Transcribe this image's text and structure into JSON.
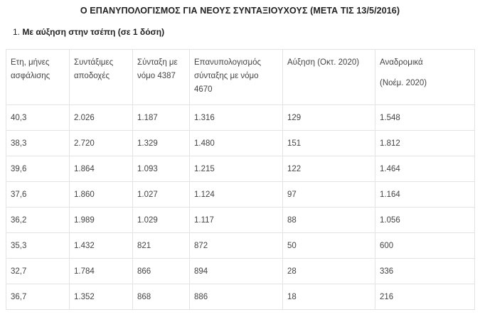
{
  "title": "Ο ΕΠΑΝΥΠΟΛΟΓΙΣΜΟΣ ΓΙΑ ΝΕΟΥΣ ΣΥΝΤΑΞΙΟΥΧΟΥΣ (ΜΕΤΑ ΤΙΣ 13/5/2016)",
  "section": {
    "number": "1.",
    "heading": "Με αύξηση στην τσέπη (σε 1 δόση)"
  },
  "table": {
    "headers": [
      "Ετη, μήνες ασφάλισης",
      "Συντάξιμες αποδοχές",
      "Σύνταξη με νόμο 4387",
      "Επανυπολογισμός σύνταξης με νόμο 4670",
      "Αύξηση (Οκτ. 2020)",
      "Αναδρομικά"
    ],
    "header_last_sub": "(Νοέμ. 2020)",
    "rows": [
      [
        "40,3",
        "2.026",
        "1.187",
        "1.316",
        "129",
        "1.548"
      ],
      [
        "38,3",
        "2.720",
        "1.329",
        "1.480",
        "151",
        "1.812"
      ],
      [
        "39,6",
        "1.864",
        "1.093",
        "1.215",
        "122",
        "1.464"
      ],
      [
        "37,6",
        "1.860",
        "1.027",
        "1.124",
        "97",
        "1.164"
      ],
      [
        "36,2",
        "1.989",
        "1.029",
        "1.117",
        "88",
        "1.056"
      ],
      [
        "35,3",
        "1.432",
        "821",
        "872",
        "50",
        "600"
      ],
      [
        "32,7",
        "1.784",
        "866",
        "894",
        "28",
        "336"
      ],
      [
        "36,7",
        "1.352",
        "868",
        "886",
        "18",
        "216"
      ]
    ]
  }
}
